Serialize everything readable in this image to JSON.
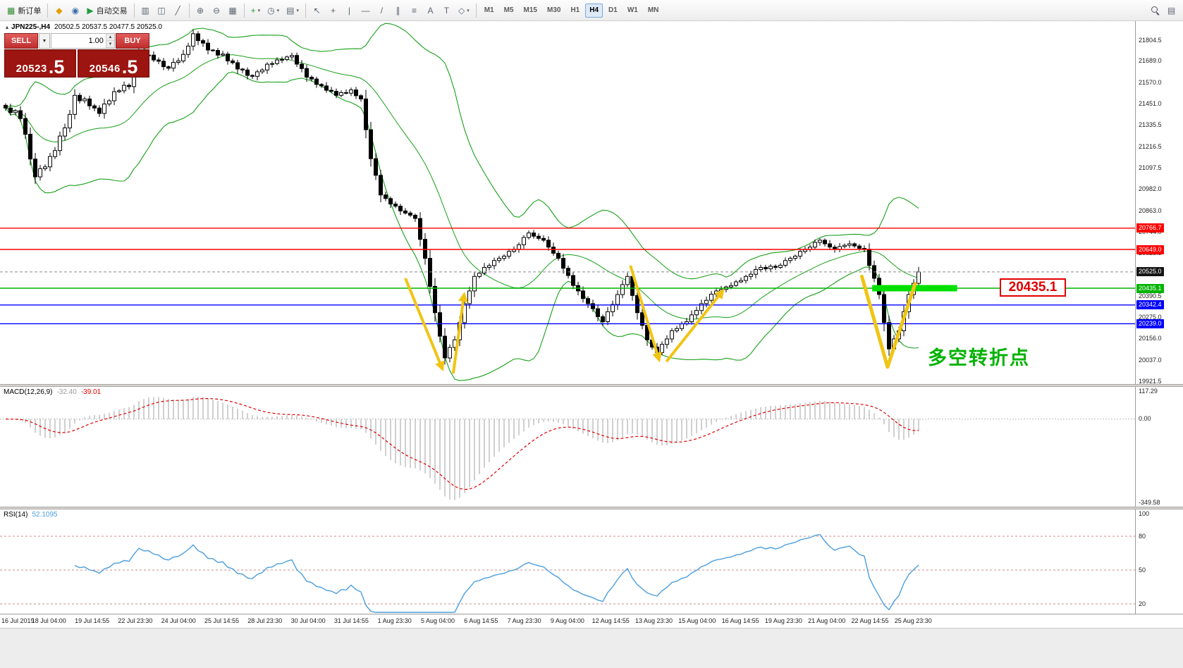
{
  "colors": {
    "accent_red": "#ff0000",
    "accent_blue": "#0000ff",
    "accent_green": "#00b400",
    "highlight_green": "#00e000",
    "annotation_yellow": "#f0c414",
    "bollinger_green": "#18a018",
    "macd_hist": "#b0b0b0",
    "macd_signal": "#e00000",
    "rsi_line": "#4a9ede",
    "rsi_level": "#cc8888",
    "badge_black": "#151515",
    "current_price_line": "#888888"
  },
  "toolbar": {
    "groups": [
      {
        "items": [
          {
            "name": "new-order-button",
            "icon": "new-order-icon",
            "glyph": "▦",
            "glyph_color": "#2e8b2e",
            "label": "新订单"
          }
        ]
      },
      {
        "items": [
          {
            "name": "metaeditor-button",
            "icon": "metaeditor-icon",
            "glyph": "◆",
            "glyph_color": "#e0a000"
          },
          {
            "name": "market-button",
            "icon": "market-icon",
            "glyph": "◉",
            "glyph_color": "#3a6ea5"
          },
          {
            "name": "autotrading-button",
            "icon": "autotrading-play-icon",
            "glyph": "▶",
            "glyph_color": "#1f9d3a",
            "label": "自动交易"
          }
        ]
      },
      {
        "items": [
          {
            "name": "bar-chart-button",
            "icon": "ohlc-bars-icon",
            "glyph": "▥"
          },
          {
            "name": "candlestick-button",
            "icon": "candlestick-icon",
            "glyph": "◫"
          },
          {
            "name": "line-chart-button",
            "icon": "line-chart-icon",
            "glyph": "╱"
          }
        ]
      },
      {
        "items": [
          {
            "name": "zoom-in-button",
            "icon": "zoom-in-icon",
            "glyph": "⊕"
          },
          {
            "name": "zoom-out-button",
            "icon": "zoom-out-icon",
            "glyph": "⊖"
          },
          {
            "name": "tile-windows-button",
            "icon": "tile-windows-icon",
            "glyph": "▦"
          }
        ]
      },
      {
        "items": [
          {
            "name": "indicators-button",
            "icon": "indicators-plus-icon",
            "glyph": "+",
            "glyph_color": "#1f9d3a",
            "caret": true
          },
          {
            "name": "periods-button",
            "icon": "clock-icon",
            "glyph": "◷",
            "caret": true
          },
          {
            "name": "templates-button",
            "icon": "template-icon",
            "glyph": "▤",
            "caret": true
          }
        ]
      },
      {
        "items": [
          {
            "name": "cursor-button",
            "icon": "cursor-icon",
            "glyph": "↖"
          },
          {
            "name": "crosshair-button",
            "icon": "crosshair-icon",
            "glyph": "+"
          },
          {
            "name": "vertical-line-button",
            "icon": "vertical-line-icon",
            "glyph": "|"
          },
          {
            "name": "horizontal-line-button",
            "icon": "horizontal-line-icon",
            "glyph": "—"
          },
          {
            "name": "trendline-button",
            "icon": "trendline-icon",
            "glyph": "/"
          },
          {
            "name": "channel-button",
            "icon": "channel-icon",
            "glyph": "∥"
          },
          {
            "name": "fibonacci-button",
            "icon": "fibonacci-icon",
            "glyph": "≡"
          },
          {
            "name": "text-button",
            "icon": "text-icon",
            "glyph": "A"
          },
          {
            "name": "label-button",
            "icon": "label-icon",
            "glyph": "T"
          },
          {
            "name": "shapes-button",
            "icon": "shapes-icon",
            "glyph": "◇",
            "caret": true
          }
        ]
      }
    ],
    "timeframes": [
      {
        "label": "M1"
      },
      {
        "label": "M5"
      },
      {
        "label": "M15"
      },
      {
        "label": "M30"
      },
      {
        "label": "H1"
      },
      {
        "label": "H4",
        "active": true
      },
      {
        "label": "D1"
      },
      {
        "label": "W1"
      },
      {
        "label": "MN"
      }
    ],
    "right": [
      {
        "name": "search-button",
        "icon": "search-icon",
        "css": "i-search"
      },
      {
        "name": "data-window-button",
        "icon": "panel-icon",
        "glyph": "▤"
      }
    ]
  },
  "symbol_header": {
    "collapse": "▴",
    "symbol": "JPN225-,H4",
    "ohlc": "20502.5 20537.5 20477.5 20525.0"
  },
  "trade_panel": {
    "sell": "SELL",
    "buy": "BUY",
    "volume": "1.00",
    "caret": "▼",
    "step_up": "▲",
    "step_down": "▼",
    "sell_big": "20523",
    "sell_frac": ".5",
    "buy_big": "20546",
    "buy_frac": ".5"
  },
  "chart_data": {
    "type": "candlestick",
    "symbol": "JPN225-",
    "timeframe": "H4",
    "ohlc_header": {
      "open": 20502.5,
      "high": 20537.5,
      "low": 20477.5,
      "close": 20525.0
    },
    "price_axis": {
      "max_tick": 21804.5,
      "min_tick": 19921.5,
      "ticks": [
        "21804.5",
        "21689.0",
        "21570.0",
        "21451.0",
        "21335.5",
        "21216.5",
        "21097.5",
        "20982.0",
        "20863.0",
        "20744.0",
        "20628.5",
        "20509.5",
        "20390.5",
        "20275.0",
        "20156.0",
        "20037.0",
        "19921.5"
      ]
    },
    "first_open": 21445,
    "closes": [
      21430,
      21405,
      21415,
      21372,
      21285,
      21148,
      21050,
      21095,
      21105,
      21162,
      21195,
      21275,
      21320,
      21395,
      21500,
      21470,
      21480,
      21442,
      21430,
      21400,
      21452,
      21470,
      21520,
      21525,
      21555,
      21548,
      21640,
      21740,
      21718,
      21722,
      21695,
      21688,
      21658,
      21650,
      21682,
      21690,
      21726,
      21772,
      21840,
      21802,
      21788,
      21750,
      21748,
      21722,
      21728,
      21690,
      21680,
      21645,
      21640,
      21610,
      21605,
      21630,
      21640,
      21672,
      21675,
      21695,
      21698,
      21712,
      21720,
      21672,
      21648,
      21600,
      21590,
      21560,
      21552,
      21528,
      21522,
      21500,
      21515,
      21512,
      21530,
      21498,
      21480,
      21310,
      21150,
      21058,
      20950,
      20930,
      20900,
      20888,
      20862,
      20850,
      20838,
      20820,
      20705,
      20600,
      20445,
      20300,
      20170,
      20050,
      20108,
      20150,
      20245,
      20350,
      20420,
      20500,
      20518,
      20550,
      20560,
      20588,
      20600,
      20612,
      20638,
      20650,
      20675,
      20715,
      20740,
      20722,
      20710,
      20700,
      20662,
      20628,
      20600,
      20545,
      20505,
      20450,
      20420,
      20378,
      20350,
      20322,
      20278,
      20250,
      20305,
      20345,
      20400,
      20455,
      20500,
      20395,
      20300,
      20230,
      20150,
      20110,
      20080,
      20125,
      20155,
      20200,
      20212,
      20238,
      20250,
      20288,
      20312,
      20350,
      20368,
      20402,
      20420,
      20428,
      20442,
      20450,
      20470,
      20478,
      20500,
      20512,
      20538,
      20550,
      20542,
      20556,
      20550,
      20562,
      20588,
      20600,
      20612,
      20638,
      20650,
      20662,
      20688,
      20700,
      20680,
      20662,
      20650,
      20665,
      20672,
      20680,
      20668,
      20655,
      20650,
      20560,
      20490,
      20400,
      20245,
      20100,
      20155,
      20200,
      20305,
      20400,
      20462,
      20525
    ],
    "bollinger": {
      "period": 20,
      "deviation": 2
    },
    "levels": [
      {
        "value": "20766.7",
        "price": 20766.7,
        "color": "#ff0000"
      },
      {
        "value": "20649.0",
        "price": 20649.0,
        "color": "#ff0000"
      },
      {
        "value": "20435.1",
        "price": 20435.1,
        "color": "#00b400"
      },
      {
        "value": "20342.4",
        "price": 20342.4,
        "color": "#0000ff"
      },
      {
        "value": "20239.0",
        "price": 20239.0,
        "color": "#0000ff"
      }
    ],
    "current_price": {
      "value": "20525.0",
      "price": 20525.0
    },
    "macd": {
      "label": "MACD(12,26,9)",
      "main_value": "-32.40",
      "signal_value": "-39.01",
      "axis": {
        "max": 117.29,
        "min": -349.58,
        "ticks": [
          {
            "label": "117.29",
            "value": 117.29
          },
          {
            "label": "0.00",
            "value": 0
          },
          {
            "label": "-349.58",
            "value": -349.58
          }
        ]
      }
    },
    "rsi": {
      "label": "RSI(14)",
      "value": "52.1095",
      "axis": {
        "max": 100,
        "min": 15,
        "levels": [
          80,
          50,
          20
        ],
        "ticks": [
          {
            "label": "100",
            "value": 100
          },
          {
            "label": "80",
            "value": 80
          },
          {
            "label": "50",
            "value": 50
          },
          {
            "label": "20",
            "value": 20
          }
        ]
      }
    },
    "time_axis": {
      "labels": [
        "16 Jul 2019",
        "18 Jul 04:00",
        "19 Jul 14:55",
        "22 Jul 23:30",
        "24 Jul 04:00",
        "25 Jul 14:55",
        "28 Jul 23:30",
        "30 Jul 04:00",
        "31 Jul 14:55",
        "1 Aug 23:30",
        "5 Aug 04:00",
        "6 Aug 14:55",
        "7 Aug 23:30",
        "9 Aug 04:00",
        "12 Aug 14:55",
        "13 Aug 23:30",
        "15 Aug 04:00",
        "16 Aug 14:55",
        "19 Aug 23:30",
        "21 Aug 04:00",
        "22 Aug 14:55",
        "25 Aug 23:30"
      ]
    },
    "annotations": {
      "arrows": [
        {
          "name": "down-arrow-left",
          "from_bar": 81,
          "from_price": 20490,
          "to_bar": 88.5,
          "to_price": 19990
        },
        {
          "name": "up-arrow-left",
          "from_bar": 90.7,
          "from_price": 19964,
          "to_bar": 92.9,
          "to_price": 20400
        },
        {
          "name": "down-arrow-mid",
          "from_bar": 126.6,
          "from_price": 20560,
          "to_bar": 132.4,
          "to_price": 20040
        },
        {
          "name": "up-arrow-mid",
          "from_bar": 133.9,
          "from_price": 20030,
          "to_bar": 145.3,
          "to_price": 20420
        }
      ],
      "v_shape": {
        "name": "v-reversal",
        "points": [
          [
            173.5,
            20500
          ],
          [
            178.7,
            20000
          ],
          [
            184.3,
            20460
          ]
        ]
      },
      "highlight": {
        "price": 20435.1,
        "from_bar": 175.6,
        "to_bar": 192.8
      },
      "price_label": {
        "text": "20435.1"
      },
      "cn_note": {
        "text": "多空转折点"
      }
    }
  }
}
